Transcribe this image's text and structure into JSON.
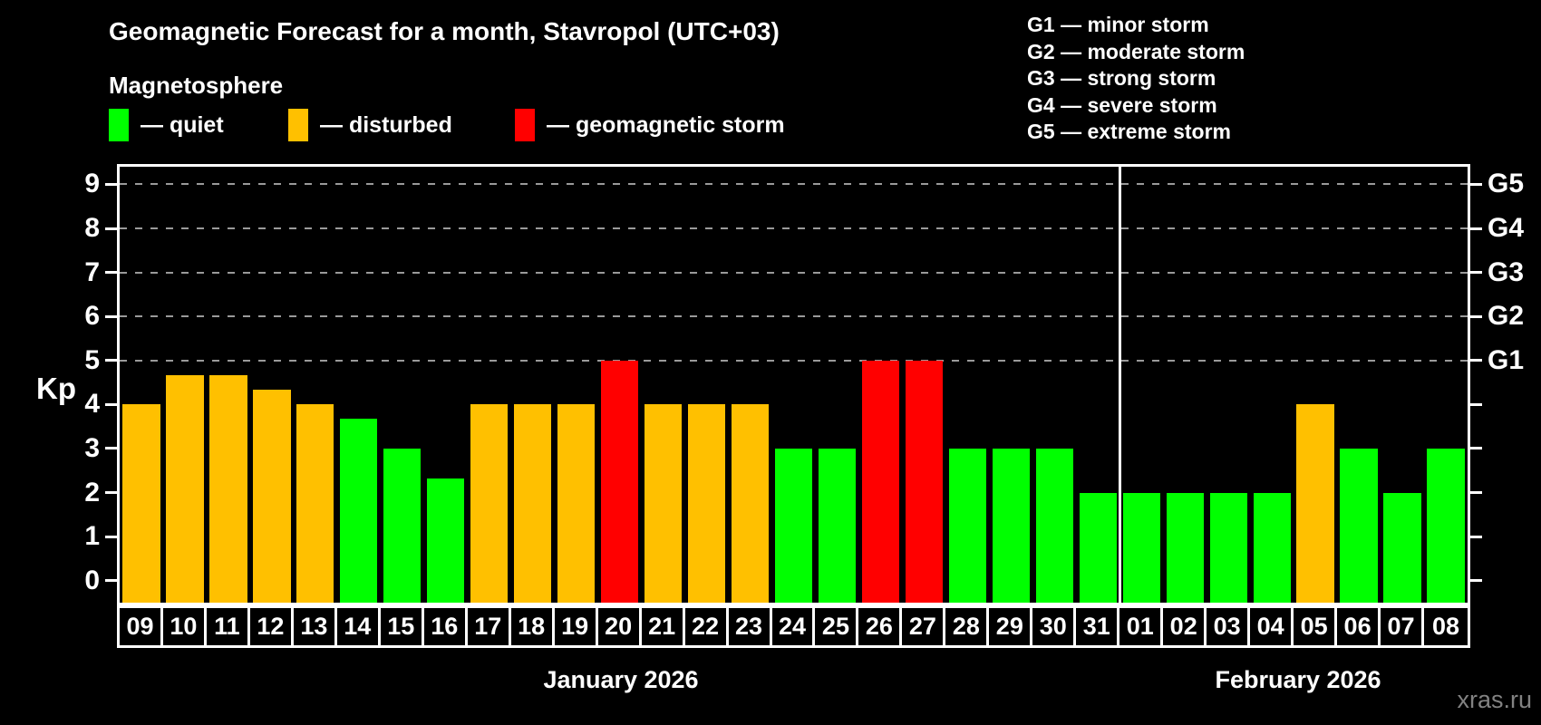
{
  "title": "Geomagnetic Forecast for a month, Stavropol (UTC+03)",
  "subtitle": "Magnetosphere",
  "legend": {
    "items": [
      {
        "label": "— quiet",
        "status": "quiet"
      },
      {
        "label": "— disturbed",
        "status": "disturbed"
      },
      {
        "label": "— geomagnetic storm",
        "status": "storm"
      }
    ]
  },
  "g_legend": [
    "G1 — minor storm",
    "G2 — moderate storm",
    "G3 — strong storm",
    "G4 — severe storm",
    "G5 — extreme storm"
  ],
  "watermark": "xras.ru",
  "chart_data": {
    "type": "bar",
    "ylabel": "Kp",
    "ylim": [
      -0.5,
      9.4
    ],
    "y_ticks": [
      0,
      1,
      2,
      3,
      4,
      5,
      6,
      7,
      8,
      9
    ],
    "gridlines_at": [
      5,
      6,
      7,
      8,
      9
    ],
    "grid": "dashed-horizontal",
    "right_axis_labels": [
      {
        "value": 5,
        "label": "G1"
      },
      {
        "value": 6,
        "label": "G2"
      },
      {
        "value": 7,
        "label": "G3"
      },
      {
        "value": 8,
        "label": "G4"
      },
      {
        "value": 9,
        "label": "G5"
      }
    ],
    "colors": {
      "quiet": "#00ff00",
      "disturbed": "#ffc000",
      "storm": "#ff0000"
    },
    "months": [
      {
        "label": "January 2026",
        "days": 23
      },
      {
        "label": "February 2026",
        "days": 8
      }
    ],
    "bars": [
      {
        "day": "09",
        "value": 4.0,
        "status": "disturbed"
      },
      {
        "day": "10",
        "value": 4.67,
        "status": "disturbed"
      },
      {
        "day": "11",
        "value": 4.67,
        "status": "disturbed"
      },
      {
        "day": "12",
        "value": 4.33,
        "status": "disturbed"
      },
      {
        "day": "13",
        "value": 4.0,
        "status": "disturbed"
      },
      {
        "day": "14",
        "value": 3.67,
        "status": "quiet"
      },
      {
        "day": "15",
        "value": 3.0,
        "status": "quiet"
      },
      {
        "day": "16",
        "value": 2.33,
        "status": "quiet"
      },
      {
        "day": "17",
        "value": 4.0,
        "status": "disturbed"
      },
      {
        "day": "18",
        "value": 4.0,
        "status": "disturbed"
      },
      {
        "day": "19",
        "value": 4.0,
        "status": "disturbed"
      },
      {
        "day": "20",
        "value": 5.0,
        "status": "storm"
      },
      {
        "day": "21",
        "value": 4.0,
        "status": "disturbed"
      },
      {
        "day": "22",
        "value": 4.0,
        "status": "disturbed"
      },
      {
        "day": "23",
        "value": 4.0,
        "status": "disturbed"
      },
      {
        "day": "24",
        "value": 3.0,
        "status": "quiet"
      },
      {
        "day": "25",
        "value": 3.0,
        "status": "quiet"
      },
      {
        "day": "26",
        "value": 5.0,
        "status": "storm"
      },
      {
        "day": "27",
        "value": 5.0,
        "status": "storm"
      },
      {
        "day": "28",
        "value": 3.0,
        "status": "quiet"
      },
      {
        "day": "29",
        "value": 3.0,
        "status": "quiet"
      },
      {
        "day": "30",
        "value": 3.0,
        "status": "quiet"
      },
      {
        "day": "31",
        "value": 2.0,
        "status": "quiet"
      },
      {
        "day": "01",
        "value": 2.0,
        "status": "quiet"
      },
      {
        "day": "02",
        "value": 2.0,
        "status": "quiet"
      },
      {
        "day": "03",
        "value": 2.0,
        "status": "quiet"
      },
      {
        "day": "04",
        "value": 2.0,
        "status": "quiet"
      },
      {
        "day": "05",
        "value": 4.0,
        "status": "disturbed"
      },
      {
        "day": "06",
        "value": 3.0,
        "status": "quiet"
      },
      {
        "day": "07",
        "value": 2.0,
        "status": "quiet"
      },
      {
        "day": "08",
        "value": 3.0,
        "status": "quiet"
      }
    ]
  }
}
